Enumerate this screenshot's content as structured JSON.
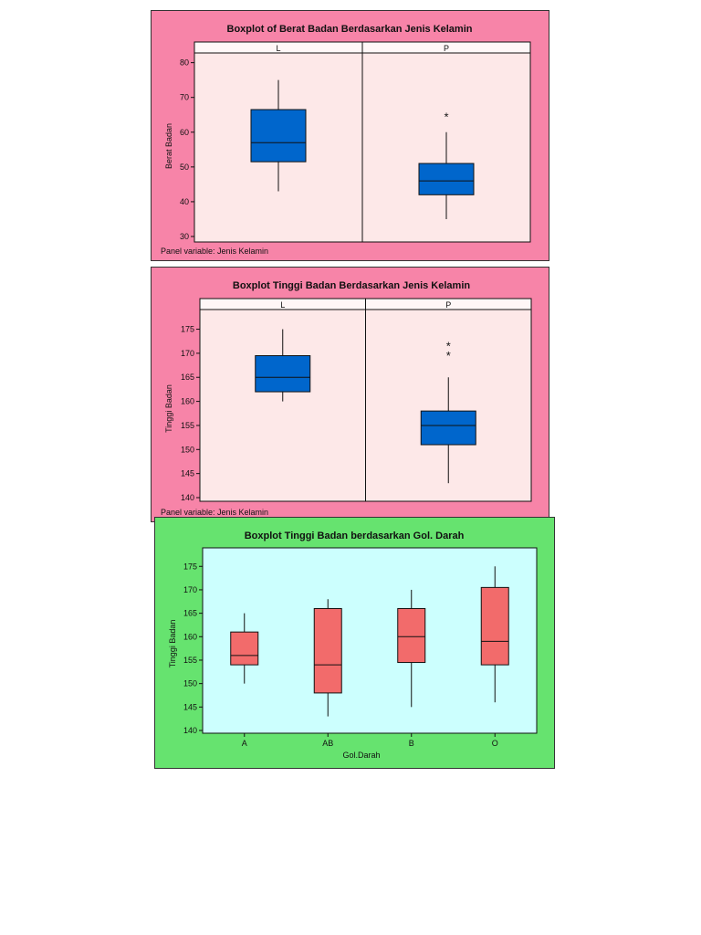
{
  "colors": {
    "pink_bg": "#f784a8",
    "pink_plot": "#fde8e8",
    "green_bg": "#66e36f",
    "cyan_plot": "#ccfffe",
    "blue_box": "#0066cc",
    "red_box": "#f26b6b"
  },
  "chart_data": [
    {
      "type": "boxplot",
      "title": "Boxplot of Berat Badan Berdasarkan Jenis Kelamin",
      "ylabel": "Berat Badan",
      "ylim": [
        30,
        82
      ],
      "yticks": [
        30,
        40,
        50,
        60,
        70,
        80
      ],
      "panels": [
        "L",
        "P"
      ],
      "boxes": [
        {
          "panel": "L",
          "min": 43,
          "q1": 51.5,
          "median": 57,
          "q3": 66.5,
          "max": 75,
          "outliers": []
        },
        {
          "panel": "P",
          "min": 35,
          "q1": 42,
          "median": 46,
          "q3": 51,
          "max": 60,
          "outliers": [
            65
          ]
        }
      ],
      "footnote": "Panel variable: Jenis Kelamin",
      "grid": false
    },
    {
      "type": "boxplot",
      "title": "Boxplot Tinggi Badan Berdasarkan Jenis Kelamin",
      "ylabel": "Tinggi Badan",
      "ylim": [
        140,
        177
      ],
      "yticks": [
        140,
        145,
        150,
        155,
        160,
        165,
        170,
        175
      ],
      "panels": [
        "L",
        "P"
      ],
      "boxes": [
        {
          "panel": "L",
          "min": 160,
          "q1": 162,
          "median": 165,
          "q3": 169.5,
          "max": 175,
          "outliers": []
        },
        {
          "panel": "P",
          "min": 143,
          "q1": 151,
          "median": 155,
          "q3": 158,
          "max": 165,
          "outliers": [
            170,
            172
          ]
        }
      ],
      "footnote": "Panel variable: Jenis Kelamin",
      "grid": false
    },
    {
      "type": "boxplot",
      "title": "Boxplot Tinggi Badan berdasarkan Gol. Darah",
      "ylabel": "Tinggi Badan",
      "xlabel": "Gol.Darah",
      "ylim": [
        140,
        177
      ],
      "yticks": [
        140,
        145,
        150,
        155,
        160,
        165,
        170,
        175
      ],
      "categories": [
        "A",
        "AB",
        "B",
        "O"
      ],
      "boxes": [
        {
          "category": "A",
          "min": 150,
          "q1": 154,
          "median": 156,
          "q3": 161,
          "max": 165,
          "outliers": []
        },
        {
          "category": "AB",
          "min": 143,
          "q1": 148,
          "median": 154,
          "q3": 166,
          "max": 168,
          "outliers": []
        },
        {
          "category": "B",
          "min": 145,
          "q1": 154.5,
          "median": 160,
          "q3": 166,
          "max": 170,
          "outliers": []
        },
        {
          "category": "O",
          "min": 146,
          "q1": 154,
          "median": 159,
          "q3": 170.5,
          "max": 175,
          "outliers": []
        }
      ],
      "grid": false
    }
  ]
}
